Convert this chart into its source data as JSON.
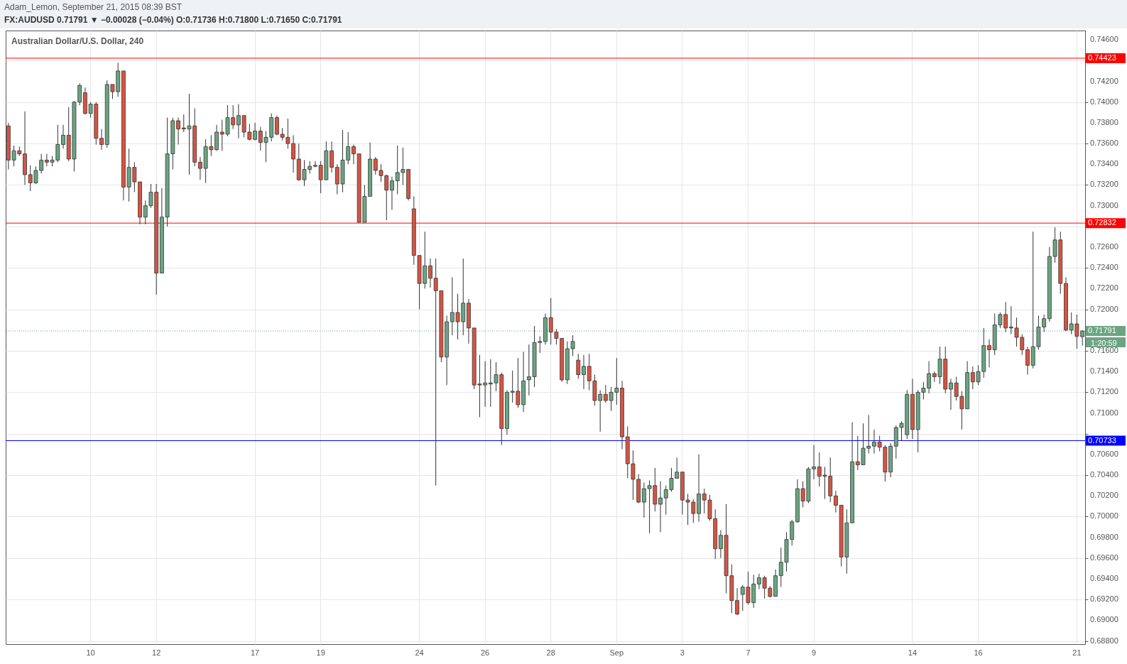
{
  "chart_data": {
    "type": "candlestick",
    "title": "Australian Dollar/U.S. Dollar, 240",
    "annotations": [
      "Adam_Lemon, September 21, 2015 08:39 BST",
      "FX:AUDUSD 0.71791 ▼ −0.00028 (−0.04%) O:0.71736 H:0.71800 L:0.71650 C:0.71791",
      "1:20:59"
    ],
    "categories": [
      null,
      null,
      null,
      null,
      null,
      null,
      null,
      null,
      null,
      null,
      null,
      null,
      null,
      null,
      null,
      "10",
      null,
      null,
      null,
      null,
      null,
      null,
      null,
      null,
      null,
      null,
      null,
      "12",
      null,
      null,
      null,
      null,
      null,
      null,
      null,
      null,
      null,
      null,
      null,
      null,
      null,
      null,
      null,
      null,
      null,
      "17",
      null,
      null,
      null,
      null,
      null,
      null,
      null,
      null,
      null,
      null,
      null,
      "19",
      null,
      null,
      null,
      null,
      null,
      null,
      null,
      null,
      null,
      null,
      null,
      null,
      null,
      null,
      null,
      null,
      null,
      "24",
      null,
      null,
      null,
      null,
      null,
      null,
      null,
      null,
      null,
      null,
      null,
      "26",
      null,
      null,
      null,
      null,
      null,
      null,
      null,
      null,
      null,
      null,
      null,
      "28",
      null,
      null,
      null,
      null,
      null,
      null,
      null,
      null,
      null,
      null,
      null,
      "Sep",
      null,
      null,
      null,
      null,
      null,
      null,
      null,
      null,
      null,
      null,
      null,
      "3",
      null,
      null,
      null,
      null,
      null,
      null,
      null,
      null,
      null,
      null,
      null,
      "7",
      null,
      null,
      null,
      null,
      null,
      null,
      null,
      null,
      null,
      null,
      null,
      "9",
      null,
      null,
      null,
      null,
      null,
      null,
      null,
      null,
      null,
      null,
      null,
      null,
      null,
      null,
      null,
      null,
      null,
      "14",
      null,
      null,
      null,
      null,
      null,
      null,
      null,
      null,
      null,
      null,
      null,
      "16",
      null,
      null,
      null,
      null,
      null,
      null,
      null,
      null,
      null,
      null,
      null,
      null,
      null,
      null,
      null,
      null,
      null,
      "21",
      null
    ],
    "ohlc": [
      [
        0.7377,
        0.738,
        0.7335,
        0.7344
      ],
      [
        0.7344,
        0.7358,
        0.7338,
        0.7353
      ],
      [
        0.7353,
        0.7357,
        0.7348,
        0.735
      ],
      [
        0.735,
        0.7391,
        0.732,
        0.733
      ],
      [
        0.733,
        0.7339,
        0.7314,
        0.7322
      ],
      [
        0.7322,
        0.7338,
        0.7321,
        0.7334
      ],
      [
        0.7334,
        0.735,
        0.7331,
        0.7344
      ],
      [
        0.7344,
        0.735,
        0.7338,
        0.7342
      ],
      [
        0.7342,
        0.7348,
        0.7338,
        0.7344
      ],
      [
        0.7344,
        0.7378,
        0.7342,
        0.7359
      ],
      [
        0.7359,
        0.7378,
        0.7355,
        0.7368
      ],
      [
        0.7368,
        0.7395,
        0.7343,
        0.7345
      ],
      [
        0.7345,
        0.7401,
        0.7333,
        0.74
      ],
      [
        0.74,
        0.7418,
        0.7397,
        0.7416
      ],
      [
        0.7409,
        0.7414,
        0.7388,
        0.7389
      ],
      [
        0.7389,
        0.74,
        0.7385,
        0.7398
      ],
      [
        0.7398,
        0.74,
        0.7359,
        0.7365
      ],
      [
        0.7365,
        0.7374,
        0.7354,
        0.7359
      ],
      [
        0.7359,
        0.7421,
        0.7356,
        0.7417
      ],
      [
        0.7417,
        0.7417,
        0.7403,
        0.741
      ],
      [
        0.741,
        0.7438,
        0.7405,
        0.743
      ],
      [
        0.743,
        0.743,
        0.7305,
        0.7318
      ],
      [
        0.7318,
        0.7355,
        0.7304,
        0.7337
      ],
      [
        0.7337,
        0.7342,
        0.7313,
        0.7323
      ],
      [
        0.7323,
        0.7323,
        0.7282,
        0.7289
      ],
      [
        0.7289,
        0.7305,
        0.7282,
        0.73
      ],
      [
        0.73,
        0.7321,
        0.7298,
        0.7313
      ],
      [
        0.7313,
        0.7321,
        0.7214,
        0.7235
      ],
      [
        0.7235,
        0.7317,
        0.7235,
        0.7289
      ],
      [
        0.7289,
        0.7385,
        0.728,
        0.735
      ],
      [
        0.735,
        0.7385,
        0.7335,
        0.7382
      ],
      [
        0.7382,
        0.7385,
        0.7359,
        0.7374
      ],
      [
        0.7375,
        0.7388,
        0.7371,
        0.7374
      ],
      [
        0.7374,
        0.7408,
        0.733,
        0.7377
      ],
      [
        0.7377,
        0.7394,
        0.7338,
        0.7342
      ],
      [
        0.7342,
        0.7347,
        0.7325,
        0.7336
      ],
      [
        0.7336,
        0.7364,
        0.7322,
        0.7357
      ],
      [
        0.7357,
        0.7368,
        0.7348,
        0.7354
      ],
      [
        0.7354,
        0.7378,
        0.7353,
        0.7371
      ],
      [
        0.7371,
        0.7383,
        0.7353,
        0.7369
      ],
      [
        0.7369,
        0.7397,
        0.7367,
        0.7385
      ],
      [
        0.7385,
        0.7397,
        0.7374,
        0.7378
      ],
      [
        0.7378,
        0.7398,
        0.7365,
        0.7387
      ],
      [
        0.7387,
        0.7387,
        0.7366,
        0.7371
      ],
      [
        0.7371,
        0.7379,
        0.7363,
        0.7364
      ],
      [
        0.7364,
        0.738,
        0.7363,
        0.7372
      ],
      [
        0.7372,
        0.7376,
        0.7353,
        0.7361
      ],
      [
        0.7361,
        0.7372,
        0.7342,
        0.7366
      ],
      [
        0.7366,
        0.7389,
        0.7362,
        0.7385
      ],
      [
        0.7385,
        0.7387,
        0.7368,
        0.7369
      ],
      [
        0.7369,
        0.7375,
        0.7363,
        0.7366
      ],
      [
        0.7366,
        0.7384,
        0.7355,
        0.736
      ],
      [
        0.736,
        0.7368,
        0.7332,
        0.7345
      ],
      [
        0.7345,
        0.736,
        0.7324,
        0.7325
      ],
      [
        0.7325,
        0.7344,
        0.7319,
        0.7335
      ],
      [
        0.7335,
        0.7343,
        0.7331,
        0.7338
      ],
      [
        0.7338,
        0.7343,
        0.7337,
        0.7339
      ],
      [
        0.7339,
        0.7343,
        0.7312,
        0.7325
      ],
      [
        0.7325,
        0.7362,
        0.7325,
        0.7353
      ],
      [
        0.7353,
        0.7362,
        0.7332,
        0.7337
      ],
      [
        0.7337,
        0.734,
        0.7311,
        0.7321
      ],
      [
        0.7321,
        0.7373,
        0.7313,
        0.7344
      ],
      [
        0.7344,
        0.7371,
        0.734,
        0.7357
      ],
      [
        0.7357,
        0.7359,
        0.734,
        0.735
      ],
      [
        0.735,
        0.735,
        0.7284,
        0.7284
      ],
      [
        0.7284,
        0.732,
        0.7284,
        0.7309
      ],
      [
        0.7309,
        0.7361,
        0.7309,
        0.7345
      ],
      [
        0.7345,
        0.7347,
        0.733,
        0.7334
      ],
      [
        0.7334,
        0.734,
        0.7323,
        0.7329
      ],
      [
        0.7329,
        0.733,
        0.7286,
        0.7315
      ],
      [
        0.7315,
        0.7328,
        0.7296,
        0.7324
      ],
      [
        0.7324,
        0.7358,
        0.7311,
        0.7332
      ],
      [
        0.7332,
        0.7356,
        0.732,
        0.7335
      ],
      [
        0.7335,
        0.7335,
        0.7305,
        0.7307
      ],
      [
        0.7297,
        0.7309,
        0.7243,
        0.7252
      ],
      [
        0.7252,
        0.7252,
        0.72,
        0.7225
      ],
      [
        0.7225,
        0.7275,
        0.722,
        0.7242
      ],
      [
        0.7242,
        0.7249,
        0.7221,
        0.723
      ],
      [
        0.723,
        0.7249,
        0.703,
        0.7218
      ],
      [
        0.7218,
        0.7218,
        0.7149,
        0.7154
      ],
      [
        0.7154,
        0.7194,
        0.7127,
        0.7188
      ],
      [
        0.7188,
        0.7231,
        0.7175,
        0.7197
      ],
      [
        0.7197,
        0.7215,
        0.7171,
        0.7188
      ],
      [
        0.7188,
        0.7249,
        0.7175,
        0.7206
      ],
      [
        0.7206,
        0.721,
        0.7167,
        0.7182
      ],
      [
        0.7182,
        0.7182,
        0.7123,
        0.7127
      ],
      [
        0.7128,
        0.7156,
        0.7096,
        0.7127
      ],
      [
        0.7127,
        0.715,
        0.7106,
        0.7129
      ],
      [
        0.7129,
        0.7152,
        0.7106,
        0.7128
      ],
      [
        0.7129,
        0.7149,
        0.7121,
        0.7137
      ],
      [
        0.7137,
        0.7139,
        0.7069,
        0.7085
      ],
      [
        0.7085,
        0.7122,
        0.7079,
        0.712
      ],
      [
        0.712,
        0.7141,
        0.711,
        0.7121
      ],
      [
        0.7121,
        0.7153,
        0.7105,
        0.7108
      ],
      [
        0.7108,
        0.7159,
        0.7101,
        0.7131
      ],
      [
        0.7132,
        0.7166,
        0.7117,
        0.7135
      ],
      [
        0.7135,
        0.7184,
        0.7125,
        0.7168
      ],
      [
        0.7168,
        0.7174,
        0.7158,
        0.7169
      ],
      [
        0.7169,
        0.7196,
        0.7166,
        0.7192
      ],
      [
        0.7192,
        0.7211,
        0.7166,
        0.7178
      ],
      [
        0.7178,
        0.7181,
        0.7166,
        0.7172
      ],
      [
        0.7172,
        0.7172,
        0.713,
        0.7132
      ],
      [
        0.7132,
        0.7169,
        0.7128,
        0.7162
      ],
      [
        0.7162,
        0.7175,
        0.7155,
        0.7169
      ],
      [
        0.7151,
        0.7157,
        0.7133,
        0.7137
      ],
      [
        0.7137,
        0.7156,
        0.7123,
        0.7145
      ],
      [
        0.7145,
        0.7157,
        0.7122,
        0.7131
      ],
      [
        0.7131,
        0.7137,
        0.7107,
        0.7112
      ],
      [
        0.7112,
        0.7122,
        0.7082,
        0.7118
      ],
      [
        0.7118,
        0.7127,
        0.711,
        0.7112
      ],
      [
        0.7112,
        0.7125,
        0.7102,
        0.712
      ],
      [
        0.712,
        0.7153,
        0.7108,
        0.7124
      ],
      [
        0.7124,
        0.7131,
        0.7065,
        0.7077
      ],
      [
        0.7077,
        0.7087,
        0.7037,
        0.7051
      ],
      [
        0.7051,
        0.7064,
        0.7016,
        0.7036
      ],
      [
        0.7036,
        0.7041,
        0.7013,
        0.7014
      ],
      [
        0.7014,
        0.7033,
        0.6999,
        0.7027
      ],
      [
        0.7027,
        0.7035,
        0.6984,
        0.703
      ],
      [
        0.703,
        0.7047,
        0.7005,
        0.7012
      ],
      [
        0.7012,
        0.7034,
        0.6985,
        0.7018
      ],
      [
        0.7018,
        0.703,
        0.7002,
        0.7026
      ],
      [
        0.7026,
        0.7047,
        0.7024,
        0.7037
      ],
      [
        0.7037,
        0.7057,
        0.7037,
        0.7043
      ],
      [
        0.7043,
        0.7043,
        0.7002,
        0.7016
      ],
      [
        0.7016,
        0.7022,
        0.6992,
        0.7014
      ],
      [
        0.7014,
        0.7017,
        0.6994,
        0.7003
      ],
      [
        0.7003,
        0.706,
        0.6995,
        0.7022
      ],
      [
        0.7022,
        0.7027,
        0.7003,
        0.7016
      ],
      [
        0.7016,
        0.7021,
        0.6996,
        0.6998
      ],
      [
        0.6998,
        0.7007,
        0.6959,
        0.6969
      ],
      [
        0.6969,
        0.6987,
        0.696,
        0.6982
      ],
      [
        0.6982,
        0.7012,
        0.6926,
        0.6943
      ],
      [
        0.6943,
        0.6954,
        0.6907,
        0.6919
      ],
      [
        0.6919,
        0.6931,
        0.6905,
        0.6906
      ],
      [
        0.6925,
        0.6934,
        0.6909,
        0.6932
      ],
      [
        0.6932,
        0.6947,
        0.6915,
        0.6917
      ],
      [
        0.6917,
        0.6944,
        0.6912,
        0.6935
      ],
      [
        0.6935,
        0.6945,
        0.693,
        0.6941
      ],
      [
        0.6941,
        0.6943,
        0.6921,
        0.6931
      ],
      [
        0.6931,
        0.6933,
        0.6922,
        0.6923
      ],
      [
        0.6923,
        0.6949,
        0.6923,
        0.6943
      ],
      [
        0.6943,
        0.697,
        0.6932,
        0.6956
      ],
      [
        0.6956,
        0.6985,
        0.6947,
        0.6978
      ],
      [
        0.6978,
        0.6997,
        0.6972,
        0.6995
      ],
      [
        0.6995,
        0.7036,
        0.6994,
        0.7027
      ],
      [
        0.7027,
        0.7034,
        0.7009,
        0.7015
      ],
      [
        0.7015,
        0.7048,
        0.7013,
        0.7046
      ],
      [
        0.7046,
        0.7069,
        0.7036,
        0.7048
      ],
      [
        0.7048,
        0.7062,
        0.7029,
        0.7039
      ],
      [
        0.704,
        0.7048,
        0.7017,
        0.7039
      ],
      [
        0.7039,
        0.7057,
        0.7014,
        0.702
      ],
      [
        0.702,
        0.7025,
        0.7004,
        0.7011
      ],
      [
        0.7011,
        0.7011,
        0.6952,
        0.6961
      ],
      [
        0.6961,
        0.7007,
        0.6945,
        0.6994
      ],
      [
        0.6994,
        0.7091,
        0.6994,
        0.7053
      ],
      [
        0.7053,
        0.7078,
        0.7045,
        0.705
      ],
      [
        0.705,
        0.709,
        0.705,
        0.7066
      ],
      [
        0.7066,
        0.7098,
        0.7061,
        0.7068
      ],
      [
        0.7068,
        0.7084,
        0.7061,
        0.7072
      ],
      [
        0.7072,
        0.7078,
        0.7063,
        0.7067
      ],
      [
        0.7067,
        0.7069,
        0.7034,
        0.7043
      ],
      [
        0.7043,
        0.7071,
        0.7038,
        0.7068
      ],
      [
        0.7068,
        0.7088,
        0.7056,
        0.7086
      ],
      [
        0.7086,
        0.7092,
        0.7073,
        0.709
      ],
      [
        0.7079,
        0.7122,
        0.7075,
        0.7118
      ],
      [
        0.7118,
        0.7133,
        0.7075,
        0.7084
      ],
      [
        0.7084,
        0.7122,
        0.7062,
        0.712
      ],
      [
        0.712,
        0.713,
        0.7113,
        0.7124
      ],
      [
        0.7124,
        0.715,
        0.7119,
        0.7138
      ],
      [
        0.7138,
        0.714,
        0.713,
        0.7135
      ],
      [
        0.7135,
        0.7164,
        0.7128,
        0.7152
      ],
      [
        0.7152,
        0.7164,
        0.7119,
        0.7123
      ],
      [
        0.7123,
        0.7133,
        0.7103,
        0.7129
      ],
      [
        0.7129,
        0.7135,
        0.7112,
        0.7116
      ],
      [
        0.7116,
        0.7121,
        0.7084,
        0.7104
      ],
      [
        0.7104,
        0.715,
        0.7104,
        0.7139
      ],
      [
        0.7139,
        0.7145,
        0.7123,
        0.713
      ],
      [
        0.713,
        0.7146,
        0.7127,
        0.714
      ],
      [
        0.714,
        0.7182,
        0.7134,
        0.7165
      ],
      [
        0.7165,
        0.7171,
        0.7144,
        0.7161
      ],
      [
        0.7161,
        0.7196,
        0.7156,
        0.7185
      ],
      [
        0.7185,
        0.7197,
        0.7182,
        0.7195
      ],
      [
        0.7195,
        0.7207,
        0.7178,
        0.7182
      ],
      [
        0.7183,
        0.7203,
        0.7176,
        0.7182
      ],
      [
        0.7182,
        0.7192,
        0.7164,
        0.7173
      ],
      [
        0.7173,
        0.7176,
        0.7156,
        0.7161
      ],
      [
        0.7161,
        0.7164,
        0.7137,
        0.7146
      ],
      [
        0.7146,
        0.7275,
        0.7143,
        0.7164
      ],
      [
        0.7164,
        0.7194,
        0.7161,
        0.7183
      ],
      [
        0.7183,
        0.7195,
        0.7178,
        0.7191
      ],
      [
        0.7191,
        0.726,
        0.7188,
        0.7251
      ],
      [
        0.7251,
        0.7279,
        0.7245,
        0.7267
      ],
      [
        0.7267,
        0.7275,
        0.7215,
        0.7225
      ],
      [
        0.7225,
        0.7231,
        0.7179,
        0.718
      ],
      [
        0.718,
        0.7197,
        0.7176,
        0.7186
      ],
      [
        0.7186,
        0.7195,
        0.7162,
        0.7174
      ],
      [
        0.71736,
        0.718,
        0.7165,
        0.71791
      ]
    ],
    "colors": [
      "#d75442",
      "#6ba583",
      "#d75442",
      "#d75442",
      "#d75442",
      "#6ba583",
      "#6ba583",
      "#d75442",
      "#6ba583",
      "#6ba583",
      "#6ba583",
      "#d75442",
      "#6ba583",
      "#6ba583",
      "#d75442",
      "#6ba583",
      "#d75442",
      "#d75442",
      "#6ba583",
      "#d75442",
      "#6ba583",
      "#d75442",
      "#6ba583",
      "#d75442",
      "#d75442",
      "#6ba583",
      "#6ba583",
      "#d75442",
      "#6ba583",
      "#6ba583",
      "#6ba583",
      "#d75442",
      "#d75442",
      "#6ba583",
      "#d75442",
      "#d75442",
      "#6ba583",
      "#d75442",
      "#6ba583",
      "#d75442",
      "#6ba583",
      "#d75442",
      "#6ba583",
      "#d75442",
      "#d75442",
      "#6ba583",
      "#d75442",
      "#6ba583",
      "#6ba583",
      "#d75442",
      "#d75442",
      "#d75442",
      "#d75442",
      "#d75442",
      "#6ba583",
      "#6ba583",
      "#6ba583",
      "#d75442",
      "#6ba583",
      "#d75442",
      "#d75442",
      "#6ba583",
      "#6ba583",
      "#d75442",
      "#d75442",
      "#6ba583",
      "#6ba583",
      "#d75442",
      "#d75442",
      "#d75442",
      "#6ba583",
      "#6ba583",
      "#6ba583",
      "#d75442",
      "#d75442",
      "#d75442",
      "#6ba583",
      "#d75442",
      "#d75442",
      "#d75442",
      "#6ba583",
      "#6ba583",
      "#d75442",
      "#6ba583",
      "#d75442",
      "#d75442",
      "#d75442",
      "#6ba583",
      "#d75442",
      "#6ba583",
      "#d75442",
      "#6ba583",
      "#6ba583",
      "#d75442",
      "#6ba583",
      "#6ba583",
      "#6ba583",
      "#6ba583",
      "#6ba583",
      "#d75442",
      "#d75442",
      "#d75442",
      "#6ba583",
      "#6ba583",
      "#d75442",
      "#6ba583",
      "#d75442",
      "#d75442",
      "#6ba583",
      "#d75442",
      "#6ba583",
      "#6ba583",
      "#d75442",
      "#d75442",
      "#d75442",
      "#d75442",
      "#6ba583",
      "#6ba583",
      "#d75442",
      "#6ba583",
      "#6ba583",
      "#6ba583",
      "#6ba583",
      "#d75442",
      "#d75442",
      "#d75442",
      "#6ba583",
      "#d75442",
      "#d75442",
      "#d75442",
      "#6ba583",
      "#d75442",
      "#d75442",
      "#d75442",
      "#6ba583",
      "#d75442",
      "#6ba583",
      "#6ba583",
      "#d75442",
      "#d75442",
      "#6ba583",
      "#6ba583",
      "#6ba583",
      "#6ba583",
      "#6ba583",
      "#d75442",
      "#6ba583",
      "#6ba583",
      "#d75442",
      "#d75442",
      "#d75442",
      "#d75442",
      "#d75442",
      "#6ba583",
      "#6ba583",
      "#d75442",
      "#6ba583",
      "#6ba583",
      "#6ba583",
      "#d75442",
      "#d75442",
      "#6ba583",
      "#6ba583",
      "#6ba583",
      "#6ba583",
      "#d75442",
      "#6ba583",
      "#6ba583",
      "#6ba583",
      "#d75442",
      "#6ba583",
      "#d75442",
      "#6ba583",
      "#d75442",
      "#d75442",
      "#6ba583",
      "#d75442",
      "#6ba583",
      "#6ba583",
      "#d75442",
      "#6ba583",
      "#6ba583",
      "#d75442",
      "#d75442",
      "#d75442",
      "#d75442",
      "#d75442",
      "#6ba583",
      "#6ba583",
      "#6ba583",
      "#6ba583",
      "#6ba583",
      "#d75442",
      "#d75442",
      "#6ba583",
      "#d75442",
      "#6ba583"
    ],
    "ylim": [
      0.6877,
      0.7469
    ],
    "yticks": [
      {
        "value": 0.688,
        "label": "0.68800"
      },
      {
        "value": 0.69,
        "label": "0.69000"
      },
      {
        "value": 0.692,
        "label": "0.69200"
      },
      {
        "value": 0.694,
        "label": "0.69400"
      },
      {
        "value": 0.696,
        "label": "0.69600"
      },
      {
        "value": 0.698,
        "label": "0.69800"
      },
      {
        "value": 0.7,
        "label": "0.70000"
      },
      {
        "value": 0.702,
        "label": "0.70200"
      },
      {
        "value": 0.704,
        "label": "0.70400"
      },
      {
        "value": 0.706,
        "label": "0.70600"
      },
      {
        "value": 0.708,
        "label": null
      },
      {
        "value": 0.71,
        "label": "0.71000"
      },
      {
        "value": 0.712,
        "label": "0.71200"
      },
      {
        "value": 0.714,
        "label": "0.71400"
      },
      {
        "value": 0.716,
        "label": "0.71600"
      },
      {
        "value": 0.718,
        "label": null
      },
      {
        "value": 0.72,
        "label": "0.72000"
      },
      {
        "value": 0.722,
        "label": "0.72200"
      },
      {
        "value": 0.724,
        "label": "0.72400"
      },
      {
        "value": 0.726,
        "label": "0.72600"
      },
      {
        "value": 0.728,
        "label": null
      },
      {
        "value": 0.73,
        "label": "0.73000"
      },
      {
        "value": 0.732,
        "label": "0.73200"
      },
      {
        "value": 0.734,
        "label": "0.73400"
      },
      {
        "value": 0.736,
        "label": "0.73600"
      },
      {
        "value": 0.738,
        "label": "0.73800"
      },
      {
        "value": 0.74,
        "label": "0.74000"
      },
      {
        "value": 0.742,
        "label": "0.74200"
      },
      {
        "value": 0.744,
        "label": null
      },
      {
        "value": 0.746,
        "label": "0.74600"
      }
    ],
    "ref_lines": [
      {
        "axis": "y",
        "value": 0.74423,
        "label": "0.74423",
        "color": "#ff0000"
      },
      {
        "axis": "y",
        "value": 0.72832,
        "label": "0.72832",
        "color": "#ff0000"
      },
      {
        "axis": "y",
        "value": 0.70733,
        "label": "0.70733",
        "color": "#0000ff"
      },
      {
        "axis": "y",
        "value": 0.71791,
        "label": "0.71791",
        "color": "#6ba583",
        "line_style": "dotted"
      }
    ],
    "grid": true
  }
}
